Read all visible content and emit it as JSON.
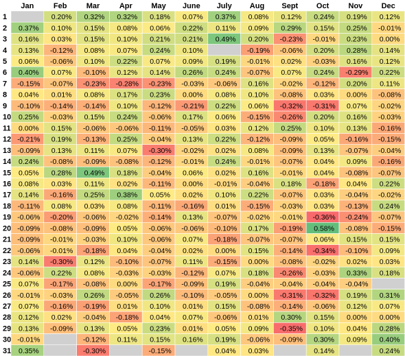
{
  "chart_data": {
    "type": "heatmap",
    "columns": [
      "Jan",
      "Feb",
      "Mar",
      "Apr",
      "May",
      "June",
      "July",
      "Aug",
      "Sept",
      "Oct",
      "Nov",
      "Dec"
    ],
    "rows": [
      "1",
      "2",
      "3",
      "4",
      "5",
      "6",
      "7",
      "8",
      "9",
      "10",
      "11",
      "12",
      "13",
      "14",
      "15",
      "16",
      "17",
      "18",
      "19",
      "20",
      "21",
      "22",
      "23",
      "24",
      "25",
      "26",
      "27",
      "28",
      "29",
      "30",
      "31"
    ],
    "values": [
      [
        null,
        0.2,
        0.32,
        0.32,
        0.18,
        0.07,
        0.37,
        0.08,
        0.12,
        0.24,
        0.19,
        0.12
      ],
      [
        0.37,
        0.1,
        0.15,
        0.08,
        0.06,
        0.22,
        0.11,
        0.09,
        0.29,
        0.15,
        0.25,
        -0.01
      ],
      [
        0.16,
        0.03,
        0.15,
        0.1,
        0.21,
        0.21,
        0.49,
        0.2,
        -0.23,
        -0.01,
        0.23,
        0.0
      ],
      [
        0.13,
        -0.12,
        0.08,
        0.07,
        0.24,
        0.1,
        null,
        -0.19,
        -0.06,
        0.2,
        0.28,
        0.14
      ],
      [
        0.06,
        -0.06,
        0.1,
        0.22,
        0.07,
        0.09,
        0.19,
        -0.01,
        0.02,
        -0.03,
        0.16,
        0.12
      ],
      [
        0.4,
        0.07,
        -0.1,
        0.12,
        0.14,
        0.26,
        0.24,
        -0.07,
        0.07,
        0.24,
        -0.29,
        0.22
      ],
      [
        -0.15,
        -0.07,
        -0.23,
        -0.28,
        -0.23,
        -0.03,
        -0.06,
        0.16,
        -0.02,
        -0.12,
        0.2,
        0.11
      ],
      [
        0.04,
        0.01,
        0.08,
        0.17,
        0.23,
        0.0,
        0.08,
        0.1,
        -0.08,
        0.03,
        0.0,
        -0.08
      ],
      [
        -0.1,
        -0.14,
        -0.14,
        0.1,
        -0.12,
        -0.21,
        0.22,
        0.06,
        -0.32,
        -0.31,
        0.07,
        -0.02
      ],
      [
        0.25,
        -0.03,
        0.15,
        0.24,
        -0.06,
        0.17,
        0.06,
        -0.15,
        -0.26,
        0.2,
        0.16,
        -0.03
      ],
      [
        0.0,
        0.15,
        -0.06,
        -0.06,
        -0.11,
        -0.05,
        0.03,
        0.12,
        0.25,
        0.1,
        0.13,
        -0.16
      ],
      [
        -0.21,
        0.19,
        -0.13,
        0.25,
        -0.04,
        0.13,
        0.22,
        -0.12,
        -0.09,
        0.05,
        -0.16,
        -0.15
      ],
      [
        -0.09,
        0.13,
        0.11,
        0.07,
        -0.3,
        -0.02,
        0.02,
        0.08,
        -0.09,
        0.13,
        -0.07,
        -0.04
      ],
      [
        0.24,
        -0.08,
        -0.09,
        -0.08,
        -0.12,
        -0.01,
        0.24,
        -0.01,
        -0.07,
        0.04,
        0.09,
        -0.16
      ],
      [
        0.05,
        0.28,
        0.49,
        0.18,
        -0.04,
        0.06,
        0.02,
        0.16,
        -0.01,
        0.04,
        -0.08,
        -0.07
      ],
      [
        0.08,
        0.03,
        0.11,
        0.02,
        -0.11,
        0.0,
        -0.01,
        -0.04,
        0.18,
        -0.18,
        0.04,
        0.22
      ],
      [
        0.14,
        -0.16,
        0.25,
        0.38,
        0.05,
        0.02,
        0.1,
        0.22,
        -0.07,
        0.03,
        -0.04,
        -0.02
      ],
      [
        -0.11,
        0.08,
        0.03,
        0.08,
        -0.11,
        -0.16,
        0.01,
        -0.15,
        -0.03,
        0.03,
        -0.13,
        0.24
      ],
      [
        -0.06,
        -0.2,
        -0.06,
        -0.02,
        -0.14,
        0.13,
        -0.07,
        -0.02,
        -0.01,
        -0.36,
        -0.24,
        -0.07
      ],
      [
        -0.09,
        -0.08,
        -0.09,
        0.05,
        -0.06,
        -0.06,
        -0.1,
        0.17,
        -0.19,
        0.58,
        -0.08,
        -0.15
      ],
      [
        -0.09,
        -0.01,
        -0.03,
        0.1,
        -0.06,
        0.07,
        -0.18,
        -0.07,
        -0.07,
        0.06,
        0.15,
        0.15
      ],
      [
        -0.06,
        -0.01,
        -0.18,
        0.04,
        -0.04,
        0.02,
        0.0,
        0.15,
        -0.14,
        -0.34,
        -0.1,
        0.09
      ],
      [
        0.14,
        -0.3,
        0.12,
        -0.1,
        -0.07,
        0.11,
        -0.15,
        0.0,
        -0.08,
        -0.02,
        0.02,
        0.03
      ],
      [
        -0.06,
        0.22,
        0.08,
        -0.03,
        -0.03,
        -0.12,
        0.07,
        0.18,
        -0.26,
        -0.03,
        0.33,
        0.18
      ],
      [
        0.07,
        -0.17,
        -0.08,
        0.0,
        -0.17,
        -0.09,
        0.19,
        -0.04,
        -0.04,
        -0.04,
        -0.04,
        null
      ],
      [
        -0.01,
        -0.03,
        0.26,
        -0.05,
        0.26,
        -0.1,
        -0.05,
        0.0,
        -0.31,
        -0.32,
        0.19,
        0.31
      ],
      [
        0.07,
        -0.16,
        -0.19,
        0.01,
        0.1,
        0.01,
        0.15,
        -0.08,
        -0.14,
        -0.06,
        0.12,
        0.07
      ],
      [
        0.12,
        0.02,
        -0.04,
        -0.18,
        0.04,
        0.07,
        -0.06,
        0.01,
        0.3,
        0.15,
        0.0,
        0.0
      ],
      [
        0.13,
        -0.09,
        0.13,
        0.05,
        0.23,
        0.01,
        0.05,
        0.09,
        -0.35,
        0.1,
        0.04,
        0.28
      ],
      [
        -0.01,
        null,
        -0.12,
        0.11,
        0.15,
        0.16,
        0.19,
        -0.06,
        -0.09,
        0.3,
        0.09,
        0.4
      ],
      [
        0.35,
        null,
        -0.3,
        null,
        -0.15,
        null,
        0.04,
        0.03,
        null,
        0.14,
        null,
        0.24
      ]
    ],
    "value_format": "percent, 2 decimals",
    "color_scale": {
      "low": "#f8696b",
      "mid": "#ffeb84",
      "high": "#63be7b",
      "missing": "#d0d0d0",
      "range": [
        -0.36,
        0.58
      ]
    }
  }
}
